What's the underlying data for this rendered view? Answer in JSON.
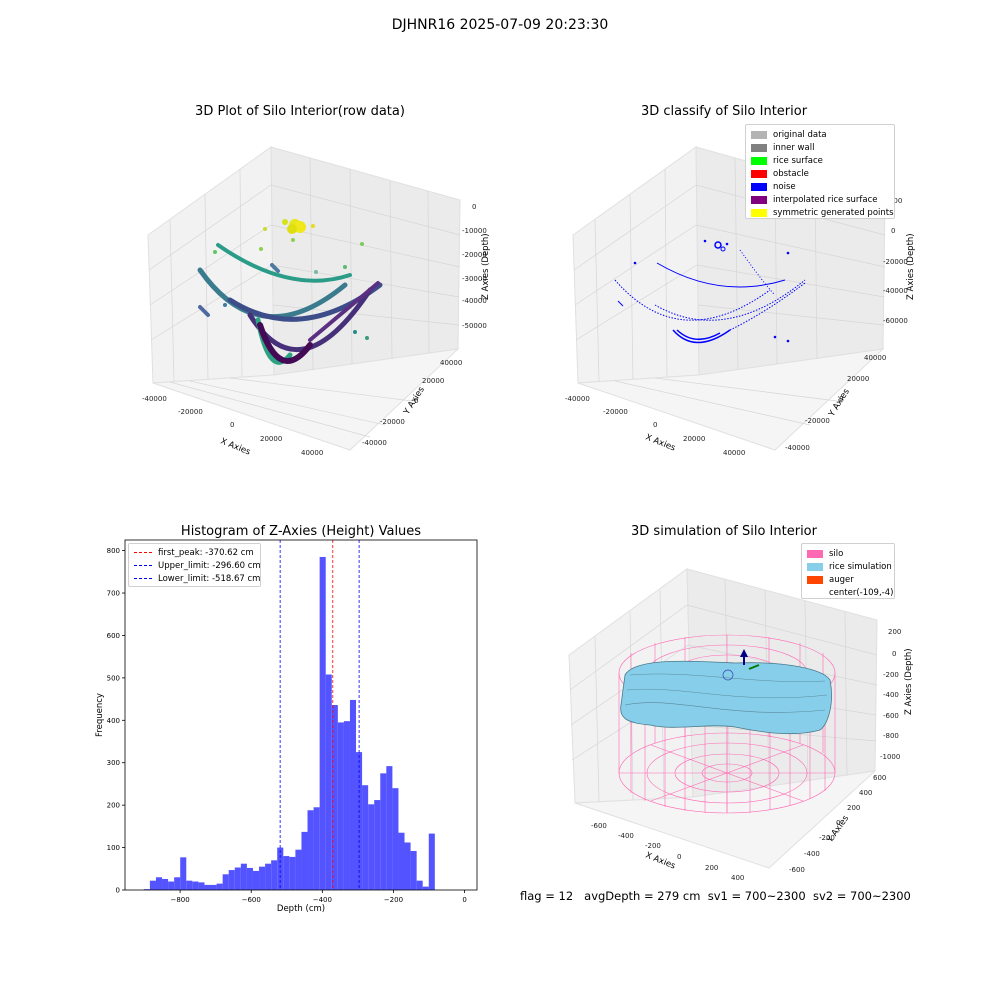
{
  "suptitle": "DJHNR16 2025-07-09 20:23:30",
  "colors": {
    "grid": "#d8d8d8",
    "pane": "#f2f2f2",
    "pane_dark": "#e8e8e8",
    "hist_bar": "#4d4dff",
    "first_peak": "#ff0000",
    "limit_line": "#0000ff"
  },
  "panels": {
    "raw": {
      "title": "3D Plot of Silo Interior(row data)",
      "xlabel": "X Axies",
      "ylabel": "Y Axies",
      "zlabel": "Z Axies (Depth)",
      "xticks": [
        "-40000",
        "-20000",
        "0",
        "20000",
        "40000"
      ],
      "yticks": [
        "40000",
        "20000",
        "0",
        "-20000",
        "-40000"
      ],
      "zticks": [
        "0",
        "-10000",
        "-20000",
        "-30000",
        "-40000",
        "-50000"
      ],
      "colormap": "viridis"
    },
    "classify": {
      "title": "3D classify of Silo Interior",
      "xlabel": "X Axies",
      "ylabel": "Y Axies",
      "zlabel": "Z Axies (Depth)",
      "xticks": [
        "-40000",
        "-20000",
        "0",
        "20000",
        "40000"
      ],
      "yticks": [
        "40000",
        "20000",
        "0",
        "-20000",
        "-40000"
      ],
      "zticks": [
        "20000",
        "0",
        "-20000",
        "-40000",
        "-60000"
      ],
      "legend": [
        {
          "label": "original data",
          "color": "#b3b3b3"
        },
        {
          "label": "inner wall",
          "color": "#808080"
        },
        {
          "label": "rice surface",
          "color": "#00ff00"
        },
        {
          "label": "obstacle",
          "color": "#ff0000"
        },
        {
          "label": "noise",
          "color": "#0000ff"
        },
        {
          "label": "interpolated rice surface",
          "color": "#800080"
        },
        {
          "label": "symmetric generated points",
          "color": "#ffff00"
        }
      ]
    },
    "simulation": {
      "title": "3D simulation of Silo Interior",
      "xlabel": "X Axies",
      "ylabel": "Y Axies",
      "zlabel": "Z Axies (Depth)",
      "xticks": [
        "-600",
        "-400",
        "-200",
        "0",
        "200",
        "400"
      ],
      "yticks": [
        "600",
        "400",
        "200",
        "0",
        "-200",
        "-400",
        "-600"
      ],
      "zticks": [
        "200",
        "0",
        "-200",
        "-400",
        "-600",
        "-800",
        "-1000"
      ],
      "legend": [
        {
          "label": "silo",
          "color": "#ff69b4"
        },
        {
          "label": "rice simulation",
          "color": "#87ceeb"
        },
        {
          "label": "auger",
          "color": "#ff4500"
        },
        {
          "label": "center(-109,-4)",
          "color": "#ffffff"
        }
      ]
    }
  },
  "chart_data": [
    {
      "type": "bar",
      "title": "Histogram of Z-Axies (Height) Values",
      "xlabel": "Depth (cm)",
      "ylabel": "Frequency",
      "xlim": [
        -955,
        35
      ],
      "ylim": [
        0,
        825
      ],
      "bin_width": 17.05,
      "bin_start": -902,
      "xticks": [
        -800,
        -600,
        -400,
        -200,
        0
      ],
      "yticks": [
        0,
        100,
        200,
        300,
        400,
        500,
        600,
        700,
        800
      ],
      "values": [
        2,
        22,
        30,
        26,
        20,
        30,
        77,
        22,
        20,
        18,
        12,
        12,
        15,
        37,
        47,
        53,
        62,
        52,
        45,
        55,
        62,
        70,
        100,
        80,
        78,
        95,
        137,
        188,
        195,
        785,
        508,
        436,
        395,
        398,
        448,
        325,
        247,
        202,
        212,
        275,
        292,
        240,
        135,
        112,
        92,
        22,
        8,
        133
      ],
      "lines": [
        {
          "label": "first_peak: -370.62 cm",
          "x": -370.62,
          "color": "#ff0000"
        },
        {
          "label": "Upper_limit: -296.60 cm",
          "x": -296.6,
          "color": "#0000ff"
        },
        {
          "label": "Lower_limit: -518.67 cm",
          "x": -518.67,
          "color": "#0000ff"
        }
      ]
    }
  ],
  "footer": {
    "flag": "flag = 12",
    "avg_depth": "avgDepth = 279 cm",
    "sv1": "sv1 = 700~2300",
    "sv2": "sv2 = 700~2300"
  }
}
